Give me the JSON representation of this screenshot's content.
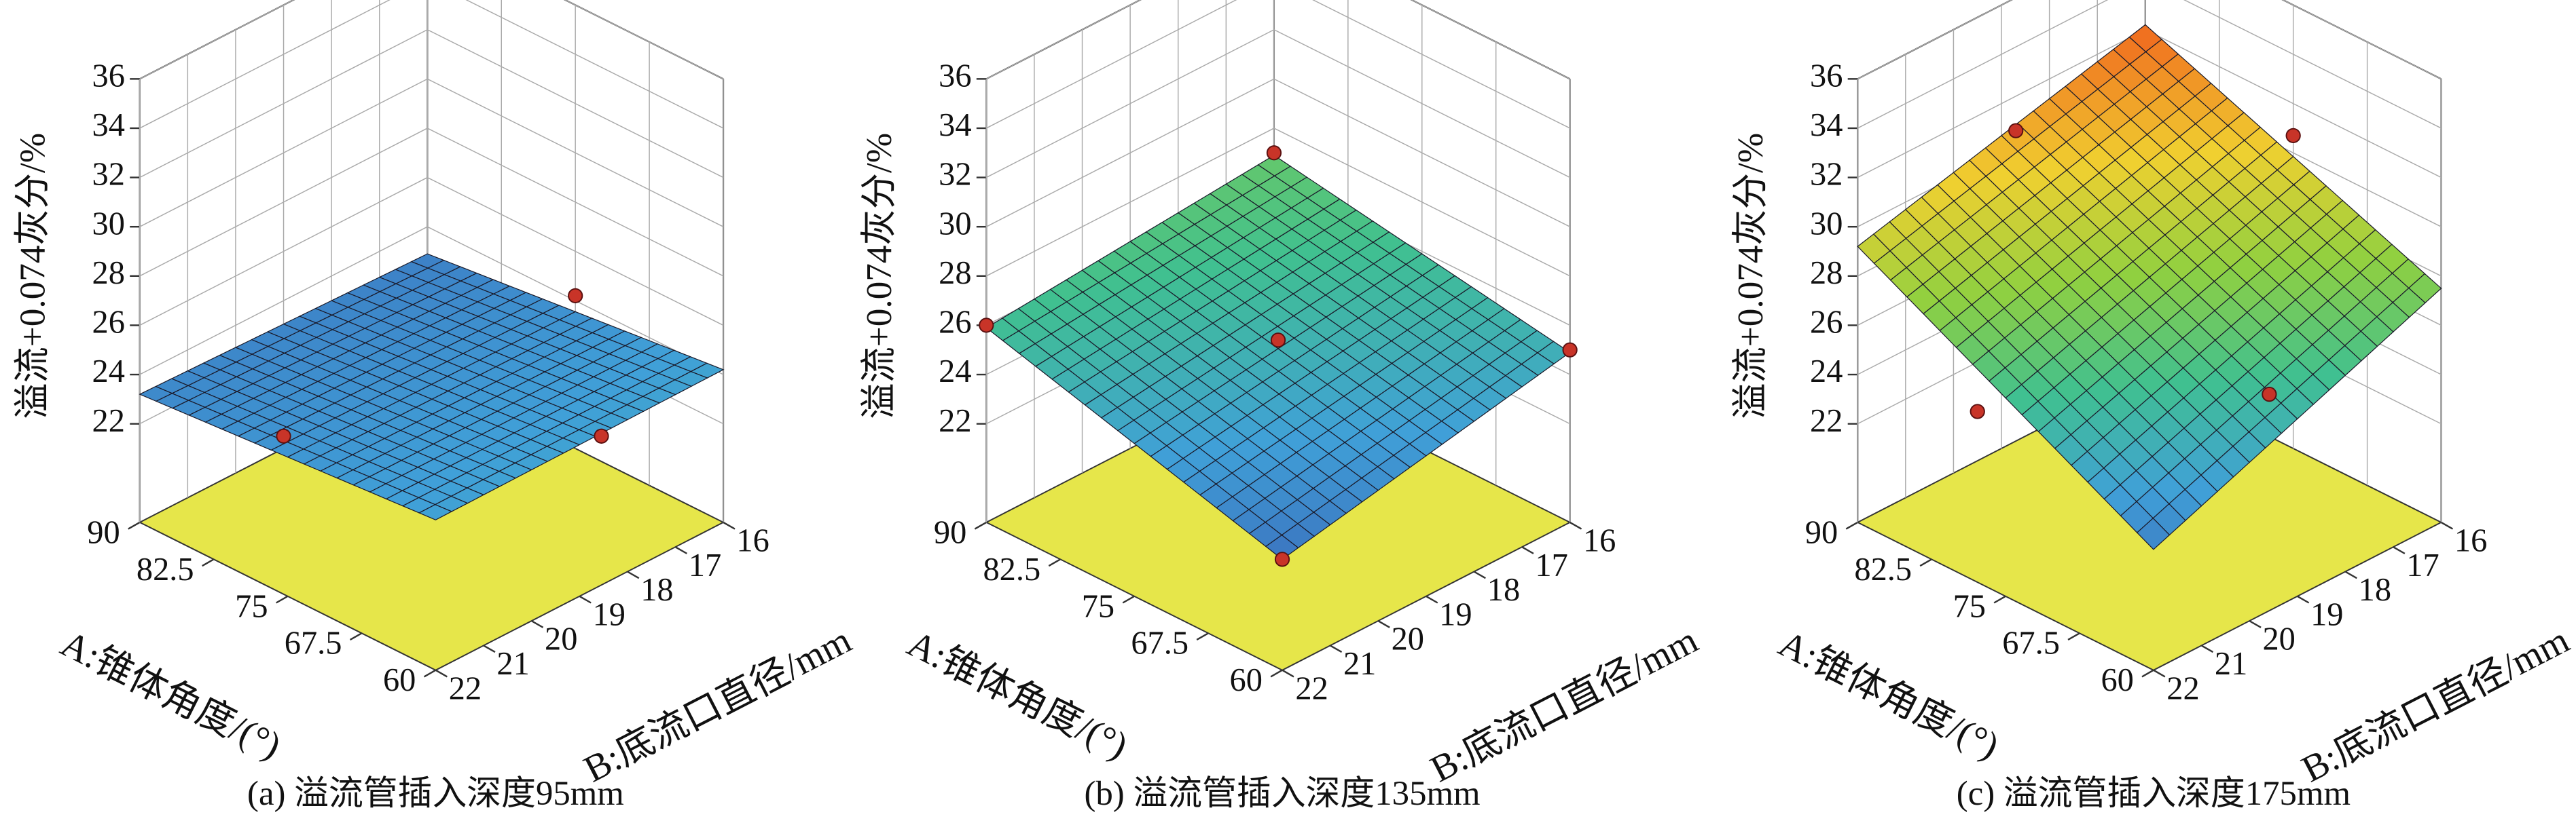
{
  "chart_data": [
    {
      "type": "surface3d",
      "caption": "(a) 溢流管插入深度95mm",
      "z_label": "溢流+0.074灰分/%",
      "x_label": "A:锥体角度/(°)",
      "y_label": "B:底流口直径/mm",
      "xlim": [
        60,
        90
      ],
      "xticks": [
        60,
        67.5,
        75,
        82.5,
        90
      ],
      "ylim": [
        16,
        22
      ],
      "yticks": [
        16,
        17,
        18,
        19,
        20,
        21,
        22
      ],
      "zlim": [
        18,
        36
      ],
      "zticks": [
        22,
        24,
        26,
        28,
        30,
        32,
        34,
        36
      ],
      "surface_z": [
        [
          24.2,
          24.1
        ],
        [
          22.9,
          23.2
        ]
      ],
      "points": {
        "x": [
          75,
          67.5,
          90
        ],
        "y": [
          16,
          17,
          19
        ],
        "z": [
          24.2,
          21,
          18.5
        ]
      },
      "point_color": "#c83428",
      "floor_color": "#e6e64a",
      "colormap": [
        "#2c3c90",
        "#2c3c90",
        "#3a68b8",
        "#40a0d8",
        "#40c090",
        "#90d040",
        "#f0d030",
        "#f07020",
        "#e02020",
        "#d81818"
      ]
    },
    {
      "type": "surface3d",
      "caption": "(b) 溢流管插入深度135mm",
      "z_label": "溢流+0.074灰分/%",
      "x_label": "A:锥体角度/(°)",
      "y_label": "B:底流口直径/mm",
      "xlim": [
        60,
        90
      ],
      "xticks": [
        60,
        67.5,
        75,
        82.5,
        90
      ],
      "ylim": [
        16,
        22
      ],
      "yticks": [
        16,
        17,
        18,
        19,
        20,
        21,
        22
      ],
      "zlim": [
        18,
        36
      ],
      "zticks": [
        22,
        24,
        26,
        28,
        30,
        32,
        34,
        36
      ],
      "surface_z": [
        [
          24.9,
          22.5
        ],
        [
          26.9,
          25.9
        ]
      ],
      "points": {
        "x": [
          90,
          75,
          90,
          60,
          60
        ],
        "y": [
          16,
          19,
          22,
          16,
          22
        ],
        "z": [
          27,
          25.4,
          26,
          25,
          22.5
        ]
      },
      "point_color": "#c83428",
      "floor_color": "#e6e64a",
      "colormap": [
        "#2c3c90",
        "#2c3c90",
        "#3a68b8",
        "#40a0d8",
        "#40c090",
        "#90d040",
        "#f0d030",
        "#f07020",
        "#e02020",
        "#d81818"
      ]
    },
    {
      "type": "surface3d",
      "caption": "(c) 溢流管插入深度175mm",
      "z_label": "溢流+0.074灰分/%",
      "x_label": "A:锥体角度/(°)",
      "y_label": "B:底流口直径/mm",
      "xlim": [
        60,
        90
      ],
      "xticks": [
        60,
        67.5,
        75,
        82.5,
        90
      ],
      "ylim": [
        16,
        22
      ],
      "yticks": [
        16,
        17,
        18,
        19,
        20,
        21,
        22
      ],
      "zlim": [
        18,
        36
      ],
      "zticks": [
        22,
        24,
        26,
        28,
        30,
        32,
        34,
        36
      ],
      "surface_z": [
        [
          27.5,
          22.9
        ],
        [
          32.2,
          29.2
        ]
      ],
      "points": {
        "x": [
          90,
          90,
          75,
          75
        ],
        "y": [
          18.7,
          19.5,
          16,
          16.5
        ],
        "z": [
          30.6,
          20,
          30.7,
          20.7
        ]
      },
      "point_color": "#c83428",
      "floor_color": "#e6e64a",
      "colormap": [
        "#2c3c90",
        "#2c3c90",
        "#3a68b8",
        "#40a0d8",
        "#40c090",
        "#90d040",
        "#f0d030",
        "#f07020",
        "#e02020",
        "#d81818"
      ]
    }
  ]
}
